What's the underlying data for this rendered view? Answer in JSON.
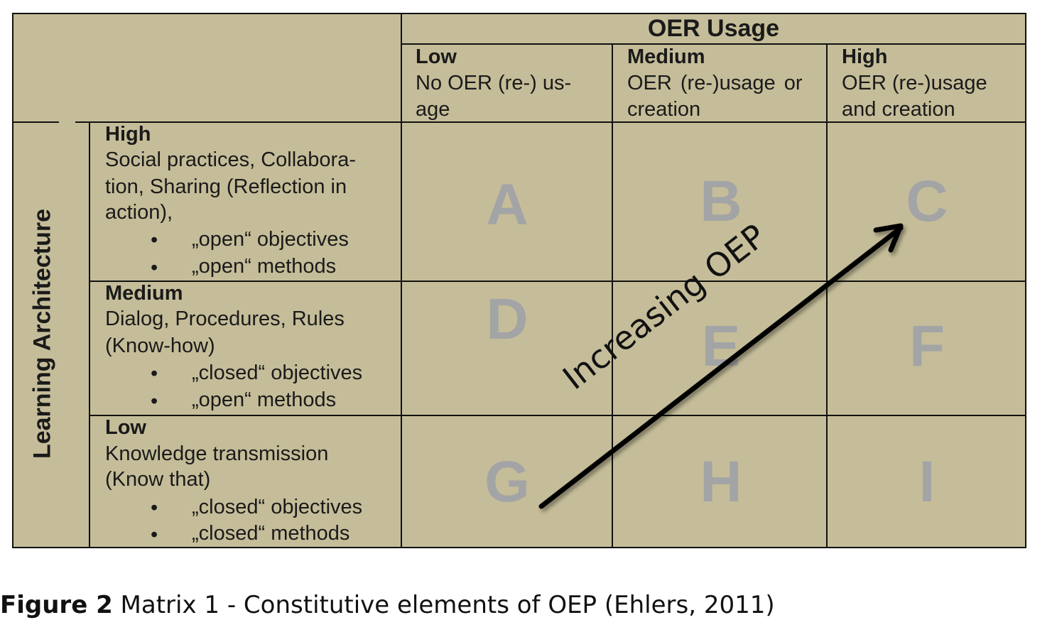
{
  "matrix": {
    "column_axis_title": "OER Usage",
    "row_axis_title": "Learning Architecture",
    "columns": [
      {
        "level": "Low",
        "description": [
          "No OER (re-) us-",
          "age"
        ]
      },
      {
        "level": "Medium",
        "description": [
          "OER (re-)usage or",
          "creation"
        ]
      },
      {
        "level": "High",
        "description": [
          "OER (re-)usage",
          "and creation"
        ]
      }
    ],
    "rows": [
      {
        "level": "High",
        "description": [
          "Social practices, Collabora-",
          "tion, Sharing (Reflection in",
          "action),"
        ],
        "bullets": [
          "„open“ objectives",
          "„open“ methods"
        ]
      },
      {
        "level": "Medium",
        "description": [
          "Dialog, Procedures, Rules",
          "(Know-how)"
        ],
        "bullets": [
          "„closed“ objectives",
          "„open“ methods"
        ]
      },
      {
        "level": "Low",
        "description": [
          "Knowledge transmission",
          "(Know that)"
        ],
        "bullets": [
          "„closed“ objectives",
          "„closed“ methods"
        ]
      }
    ],
    "cells": [
      "A",
      "B",
      "C",
      "D",
      "E",
      "F",
      "G",
      "H",
      "I"
    ],
    "arrow_label": "Increasing OEP",
    "colors": {
      "background": "#c5bd99",
      "cell_letters": "#a3a4a6",
      "lines": "#111111"
    }
  },
  "caption": {
    "label": "Figure 2",
    "text": " Matrix 1 - Constitutive elements of OEP (Ehlers, 2011)"
  }
}
